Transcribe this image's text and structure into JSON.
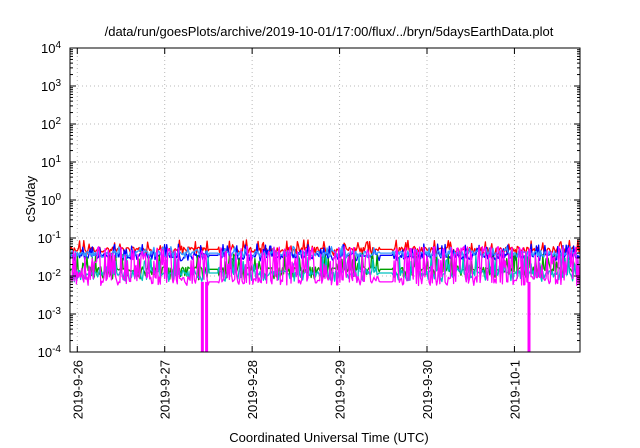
{
  "chart_data": {
    "type": "line",
    "title": "/data/run/goesPlots/archive/2019-10-01/17:00/flux/../bryn/5daysEarthData.plot",
    "xlabel": "Coordinated Universal Time (UTC)",
    "ylabel": "cSv/day",
    "yscale": "log",
    "ylim": [
      0.0001,
      10000
    ],
    "xlim": [
      "2019-09-25T22:00",
      "2019-10-01T18:00"
    ],
    "grid": true,
    "legend": "none",
    "y_ticks": [
      {
        "base": "10",
        "exp": "-4"
      },
      {
        "base": "10",
        "exp": "-3"
      },
      {
        "base": "10",
        "exp": "-2"
      },
      {
        "base": "10",
        "exp": "-1"
      },
      {
        "base": "10",
        "exp": "0"
      },
      {
        "base": "10",
        "exp": "1"
      },
      {
        "base": "10",
        "exp": "2"
      },
      {
        "base": "10",
        "exp": "3"
      },
      {
        "base": "10",
        "exp": "4"
      }
    ],
    "x_ticks": [
      "2019-9-26",
      "2019-9-27",
      "2019-9-28",
      "2019-9-29",
      "2019-9-30",
      "2019-10-1"
    ],
    "x_tick_values": [
      "2019-09-26T00:00",
      "2019-09-27T00:00",
      "2019-09-28T00:00",
      "2019-09-29T00:00",
      "2019-09-30T00:00",
      "2019-10-01T00:00"
    ],
    "gaps": [
      {
        "start": "2019-09-27T12:00",
        "end": "2019-09-27T14:40"
      },
      {
        "start": "2019-09-29T11:00",
        "end": "2019-09-29T12:20"
      },
      {
        "start": "2019-09-29T12:20",
        "end": "2019-09-29T14:30"
      }
    ],
    "dropouts": [
      "2019-09-27T10:20",
      "2019-09-27T11:30",
      "2019-10-01T04:00"
    ],
    "series": [
      {
        "color": "#ff0000",
        "baseline": 0.05,
        "spike_max": 0.09,
        "dip_min": 0.035
      },
      {
        "color": "#0000ff",
        "baseline": 0.035,
        "spike_max": 0.07,
        "dip_min": 0.025
      },
      {
        "color": "#00a000",
        "baseline": 0.015,
        "spike_max": 0.04,
        "dip_min": 0.008
      },
      {
        "color": "#00c0c0",
        "baseline": 0.012,
        "spike_max": 0.035,
        "dip_min": 0.007
      },
      {
        "color": "#3399ff",
        "baseline": 0.04,
        "spike_max": 0.06,
        "dip_min": 0.03
      },
      {
        "color": "#ff00ff",
        "baseline": 0.007,
        "spike_max": 0.06,
        "dip_min": 0.005
      }
    ]
  }
}
